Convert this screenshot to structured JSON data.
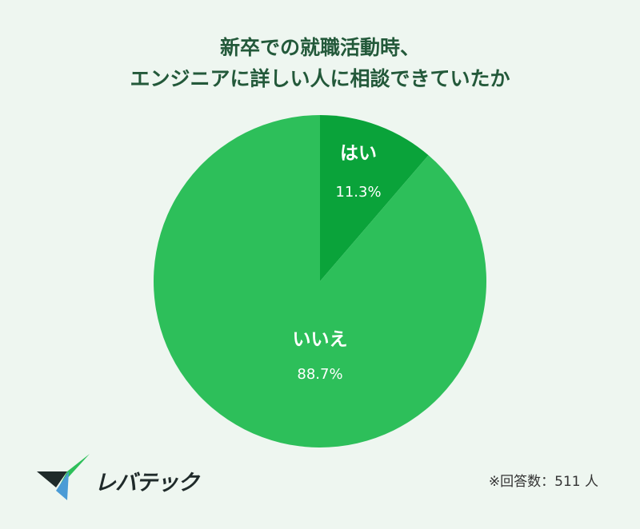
{
  "chart_data": {
    "type": "pie",
    "title_lines": [
      "新卒での就職活動時、",
      "エンジニアに詳しい人に相談できていたか"
    ],
    "slices": [
      {
        "label": "はい",
        "value": 11.3,
        "value_label": "11.3%",
        "color": "#0aa33a"
      },
      {
        "label": "いいえ",
        "value": 88.7,
        "value_label": "88.7%",
        "color": "#2dbf5a"
      }
    ],
    "start": "12 o'clock",
    "direction": "clockwise",
    "legend": "none"
  },
  "logo": {
    "text": "レバテック"
  },
  "footnote": "※回答数：511 人"
}
